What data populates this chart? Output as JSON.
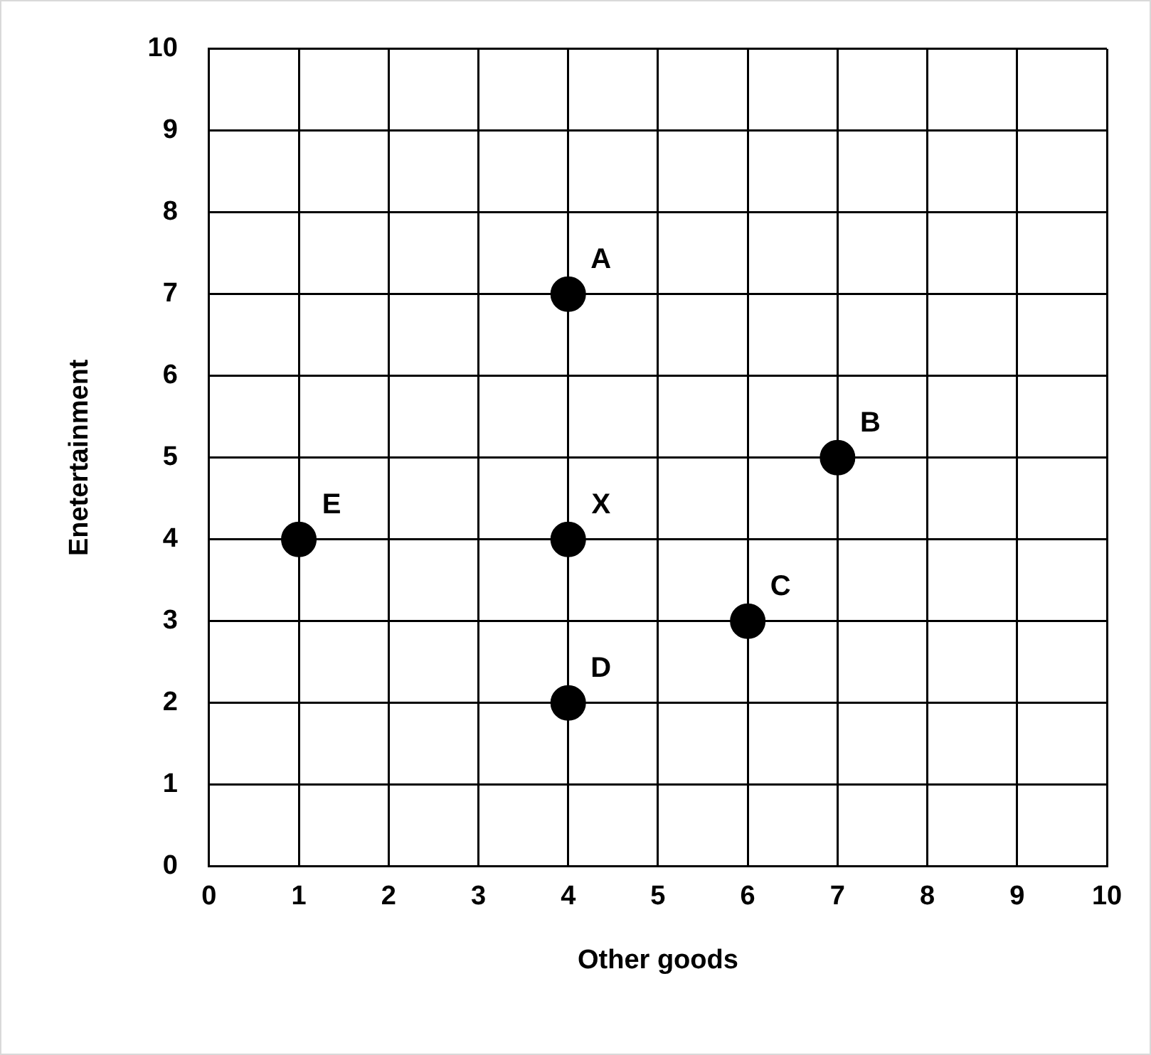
{
  "chart_data": {
    "type": "scatter",
    "xlabel": "Other goods",
    "ylabel": "Enetertainment",
    "x": [
      4,
      7,
      6,
      4,
      1,
      4
    ],
    "values": [
      7,
      5,
      3,
      2,
      4,
      4
    ],
    "color": "#000000",
    "marker": "circle",
    "xlim": [
      0,
      10
    ],
    "ylim": [
      0,
      10
    ],
    "xticks": [
      0,
      1,
      2,
      3,
      4,
      5,
      6,
      7,
      8,
      9,
      10
    ],
    "yticks": [
      0,
      1,
      2,
      3,
      4,
      5,
      6,
      7,
      8,
      9,
      10
    ],
    "grid": true,
    "annotations": [
      {
        "text": "A",
        "x": 4,
        "y": 7
      },
      {
        "text": "B",
        "x": 7,
        "y": 5
      },
      {
        "text": "C",
        "x": 6,
        "y": 3
      },
      {
        "text": "D",
        "x": 4,
        "y": 2
      },
      {
        "text": "E",
        "x": 1,
        "y": 4
      },
      {
        "text": "X",
        "x": 4,
        "y": 4
      }
    ]
  }
}
